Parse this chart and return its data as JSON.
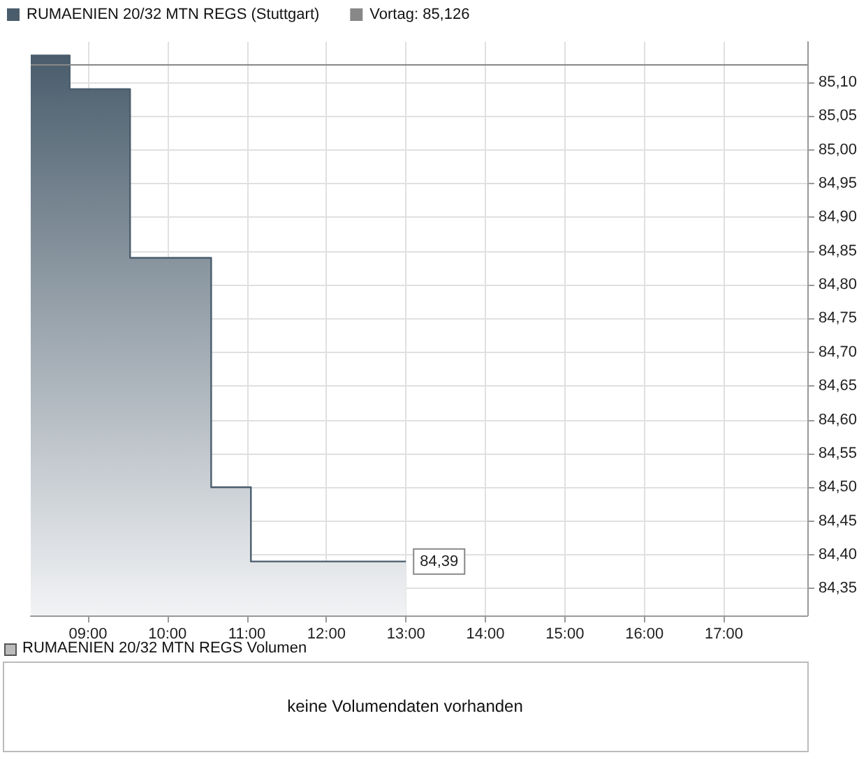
{
  "chart_data": [
    {
      "type": "area",
      "legend": "top left",
      "grid": true,
      "xlim": [
        8.28,
        18.05
      ],
      "ylim": [
        84.31,
        85.16
      ],
      "xticks": [
        {
          "value": 9,
          "label": "09:00"
        },
        {
          "value": 10,
          "label": "10:00"
        },
        {
          "value": 11,
          "label": "11:00"
        },
        {
          "value": 12,
          "label": "12:00"
        },
        {
          "value": 13,
          "label": "13:00"
        },
        {
          "value": 14,
          "label": "14:00"
        },
        {
          "value": 15,
          "label": "15:00"
        },
        {
          "value": 16,
          "label": "16:00"
        },
        {
          "value": 17,
          "label": "17:00"
        }
      ],
      "yticks": [
        {
          "value": 84.35,
          "label": "84,35"
        },
        {
          "value": 84.4,
          "label": "84,40"
        },
        {
          "value": 84.45,
          "label": "84,45"
        },
        {
          "value": 84.5,
          "label": "84,50"
        },
        {
          "value": 84.55,
          "label": "84,55"
        },
        {
          "value": 84.6,
          "label": "84,60"
        },
        {
          "value": 84.65,
          "label": "84,65"
        },
        {
          "value": 84.7,
          "label": "84,70"
        },
        {
          "value": 84.75,
          "label": "84,75"
        },
        {
          "value": 84.8,
          "label": "84,80"
        },
        {
          "value": 84.85,
          "label": "84,85"
        },
        {
          "value": 84.9,
          "label": "84,90"
        },
        {
          "value": 84.95,
          "label": "84,95"
        },
        {
          "value": 85.0,
          "label": "85,00"
        },
        {
          "value": 85.05,
          "label": "85,05"
        },
        {
          "value": 85.1,
          "label": "85,10"
        }
      ],
      "series": [
        {
          "name": "RUMAENIEN 20/32 MTN REGS (Stuttgart)",
          "color": "#4a5d6c",
          "x": [
            8.28,
            8.77,
            8.77,
            9.53,
            9.53,
            10.55,
            10.55,
            11.05,
            11.05,
            13.0
          ],
          "values": [
            85.14,
            85.14,
            85.09,
            85.09,
            84.84,
            84.84,
            84.5,
            84.5,
            84.39,
            84.39
          ],
          "value_labels": [
            null,
            null,
            null,
            null,
            null,
            null,
            null,
            null,
            null,
            "84,39"
          ]
        }
      ],
      "ref_lines": [
        {
          "axis": "y",
          "value": 85.126,
          "label": "Vortag: 85,126",
          "color": "#888888"
        }
      ]
    },
    {
      "type": "other",
      "title": "RUMAENIEN 20/32 MTN REGS Volumen",
      "annotations": [
        "keine Volumendaten vorhanden"
      ]
    }
  ]
}
